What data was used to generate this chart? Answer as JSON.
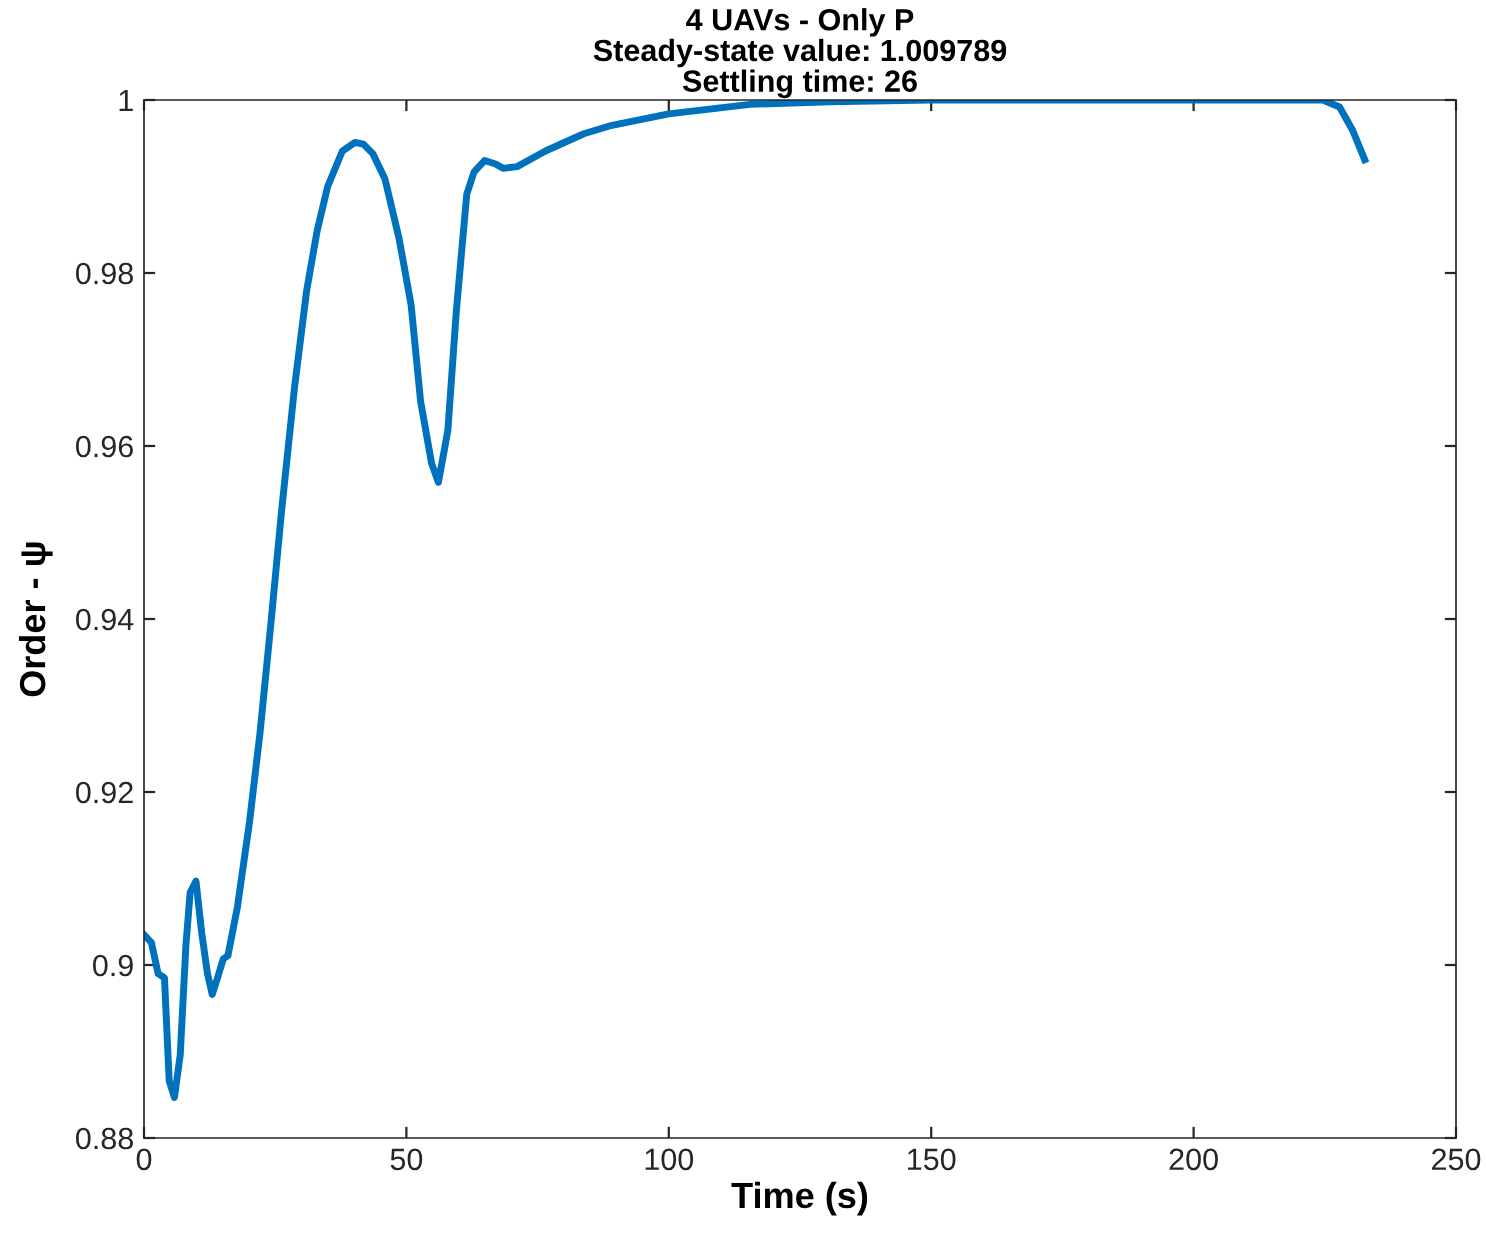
{
  "chart_data": {
    "type": "line",
    "title": "4 UAVs - Only P\nSteady-state value: 1.009789\nSettling time: 26",
    "xlabel": "Time (s)",
    "ylabel": "Order - ψ",
    "x": [
      0,
      1.4,
      2.7,
      3.9,
      4.8,
      5.8,
      6.9,
      8.0,
      8.8,
      9.9,
      11.0,
      12.1,
      13.0,
      14.0,
      15.1,
      16.0,
      17.8,
      20.1,
      22.1,
      24.2,
      26.2,
      28.7,
      31.0,
      33.0,
      35.0,
      37.8,
      40.2,
      41.8,
      43.6,
      45.9,
      48.6,
      50.9,
      52.7,
      54.8,
      56.1,
      57.9,
      59.5,
      61.5,
      62.9,
      64.9,
      67.0,
      68.4,
      71.1,
      76.5,
      83.8,
      88.7,
      100,
      115.5,
      130.7,
      150,
      200,
      224.6,
      227.8,
      230.3,
      232.6
    ],
    "series": [
      {
        "color": "#0072bd",
        "values": [
          0.9035,
          0.9026,
          0.899,
          0.8985,
          0.8866,
          0.8847,
          0.8896,
          0.9024,
          0.9084,
          0.9097,
          0.9037,
          0.899,
          0.8966,
          0.8985,
          0.9007,
          0.9011,
          0.9067,
          0.9165,
          0.9268,
          0.9396,
          0.9524,
          0.9669,
          0.978,
          0.9849,
          0.99,
          0.9941,
          0.9951,
          0.9949,
          0.9938,
          0.9909,
          0.984,
          0.9763,
          0.9652,
          0.958,
          0.9558,
          0.9618,
          0.9755,
          0.9891,
          0.9917,
          0.993,
          0.9926,
          0.9921,
          0.9923,
          0.9941,
          0.9961,
          0.997,
          0.9984,
          0.9995,
          0.9998,
          1.0,
          1.0,
          1.0,
          0.9992,
          0.9965,
          0.9931
        ]
      }
    ],
    "xlim": [
      0,
      250
    ],
    "xticks": [
      0,
      50,
      100,
      150,
      200,
      250
    ],
    "ylim": [
      0.88,
      1
    ],
    "yticks": [
      0.88,
      0.9,
      0.92,
      0.94,
      0.96,
      0.98,
      1
    ],
    "grid": false,
    "legend": false,
    "marker": "none",
    "line_style": "solid"
  }
}
